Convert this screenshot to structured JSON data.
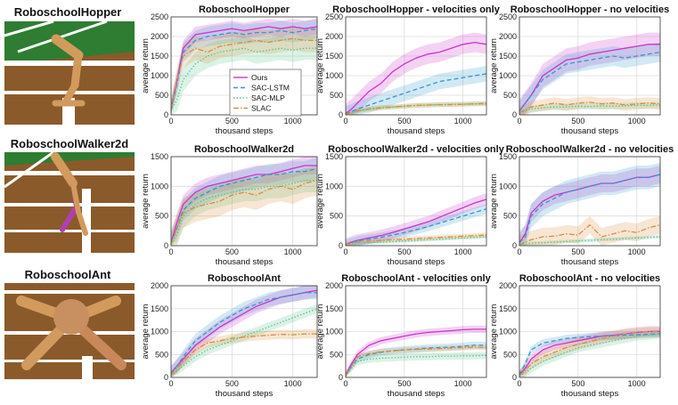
{
  "figure": {
    "environments": [
      {
        "key": "hopper",
        "title": "RoboschoolHopper"
      },
      {
        "key": "walker",
        "title": "RoboschoolWalker2d"
      },
      {
        "key": "ant",
        "title": "RoboschoolAnt"
      }
    ],
    "legend": [
      {
        "name": "Ours",
        "color": "#cc33cc",
        "style": "solid"
      },
      {
        "name": "SAC-LSTM",
        "color": "#3399cc",
        "style": "dashed"
      },
      {
        "name": "SAC-MLP",
        "color": "#66cc99",
        "style": "dotted"
      },
      {
        "name": "SLAC",
        "color": "#d9944a",
        "style": "dashdot"
      }
    ],
    "colors": {
      "Ours": "#cc33cc",
      "SAC-LSTM": "#3399cc",
      "SAC-MLP": "#5cc48f",
      "SLAC": "#d98c3c",
      "grid": "#dcdcdc",
      "turf": "#2e7d32",
      "track": "#8b5a2b"
    }
  },
  "chart_data": [
    {
      "type": "line",
      "title": "RoboschoolHopper",
      "xlabel": "thousand steps",
      "ylabel": "average return",
      "xlim": [
        0,
        1200
      ],
      "ylim": [
        0,
        2500
      ],
      "xticks": [
        0,
        500,
        1000
      ],
      "yticks": [
        0,
        500,
        1000,
        1500,
        2000,
        2500
      ],
      "x": [
        0,
        50,
        100,
        200,
        300,
        400,
        500,
        600,
        700,
        800,
        900,
        1000,
        1100,
        1200
      ],
      "series": [
        {
          "name": "Ours",
          "values": [
            150,
            900,
            1700,
            2050,
            2100,
            2150,
            2200,
            2150,
            2200,
            2250,
            2200,
            2250,
            2200,
            2250
          ],
          "band": 200
        },
        {
          "name": "SAC-LSTM",
          "values": [
            150,
            800,
            1600,
            1900,
            2000,
            2050,
            2100,
            2050,
            2100,
            2100,
            2150,
            2100,
            2150,
            2200
          ],
          "band": 250
        },
        {
          "name": "SAC-MLP",
          "values": [
            100,
            400,
            900,
            1300,
            1500,
            1600,
            1650,
            1700,
            1600,
            1650,
            1700,
            1650,
            1700,
            1700
          ],
          "band": 300
        },
        {
          "name": "SLAC",
          "values": [
            150,
            900,
            1500,
            1700,
            1600,
            1750,
            1800,
            1850,
            1900,
            1850,
            1900,
            1950,
            1900,
            1900
          ],
          "band": 300
        }
      ]
    },
    {
      "type": "line",
      "title": "RoboschoolHopper - velocities only",
      "xlabel": "thousand steps",
      "ylabel": "average return",
      "xlim": [
        0,
        1200
      ],
      "ylim": [
        0,
        2500
      ],
      "xticks": [
        0,
        500,
        1000
      ],
      "yticks": [
        0,
        500,
        1000,
        1500,
        2000,
        2500
      ],
      "x": [
        0,
        50,
        100,
        200,
        300,
        400,
        500,
        600,
        700,
        800,
        900,
        1000,
        1100,
        1200
      ],
      "series": [
        {
          "name": "Ours",
          "values": [
            30,
            150,
            300,
            600,
            800,
            1100,
            1300,
            1450,
            1550,
            1600,
            1700,
            1800,
            1850,
            1800
          ],
          "band": 250
        },
        {
          "name": "SAC-LSTM",
          "values": [
            20,
            80,
            150,
            250,
            350,
            450,
            550,
            650,
            750,
            850,
            900,
            950,
            1000,
            1050
          ],
          "band": 200
        },
        {
          "name": "SAC-MLP",
          "values": [
            20,
            60,
            100,
            150,
            180,
            200,
            220,
            240,
            250,
            260,
            270,
            270,
            280,
            280
          ],
          "band": 60
        },
        {
          "name": "SLAC",
          "values": [
            20,
            60,
            100,
            150,
            180,
            200,
            220,
            240,
            250,
            260,
            260,
            270,
            280,
            290
          ],
          "band": 60
        }
      ]
    },
    {
      "type": "line",
      "title": "RoboschoolHopper - no velocities",
      "xlabel": "thousand steps",
      "ylabel": "average return",
      "xlim": [
        0,
        1200
      ],
      "ylim": [
        0,
        2500
      ],
      "xticks": [
        0,
        500,
        1000
      ],
      "yticks": [
        0,
        500,
        1000,
        1500,
        2000,
        2500
      ],
      "x": [
        0,
        50,
        100,
        200,
        300,
        400,
        500,
        600,
        700,
        800,
        900,
        1000,
        1100,
        1200
      ],
      "series": [
        {
          "name": "Ours",
          "values": [
            100,
            300,
            500,
            1000,
            1200,
            1400,
            1450,
            1550,
            1600,
            1650,
            1700,
            1750,
            1800,
            1800
          ],
          "band": 300
        },
        {
          "name": "SAC-LSTM",
          "values": [
            100,
            300,
            500,
            900,
            1100,
            1300,
            1350,
            1400,
            1450,
            1500,
            1450,
            1500,
            1550,
            1600
          ],
          "band": 250
        },
        {
          "name": "SAC-MLP",
          "values": [
            60,
            100,
            150,
            180,
            200,
            200,
            220,
            210,
            230,
            220,
            230,
            240,
            240,
            250
          ],
          "band": 80
        },
        {
          "name": "SLAC",
          "values": [
            60,
            120,
            200,
            250,
            300,
            250,
            300,
            320,
            280,
            300,
            250,
            280,
            300,
            280
          ],
          "band": 150
        }
      ]
    },
    {
      "type": "line",
      "title": "RoboschoolWalker2d",
      "xlabel": "thousand steps",
      "ylabel": "average return",
      "xlim": [
        0,
        1200
      ],
      "ylim": [
        0,
        1500
      ],
      "xticks": [
        0,
        500,
        1000
      ],
      "yticks": [
        0,
        500,
        1000,
        1500
      ],
      "x": [
        0,
        50,
        100,
        200,
        300,
        400,
        500,
        600,
        700,
        800,
        900,
        1000,
        1100,
        1200
      ],
      "series": [
        {
          "name": "Ours",
          "values": [
            50,
            400,
            700,
            900,
            1000,
            1050,
            1100,
            1150,
            1200,
            1200,
            1250,
            1300,
            1350,
            1350
          ],
          "band": 150
        },
        {
          "name": "SAC-LSTM",
          "values": [
            50,
            300,
            600,
            800,
            900,
            1000,
            1050,
            1100,
            1150,
            1200,
            1200,
            1250,
            1250,
            1300
          ],
          "band": 180
        },
        {
          "name": "SAC-MLP",
          "values": [
            30,
            200,
            500,
            700,
            800,
            850,
            900,
            950,
            950,
            1000,
            1000,
            1050,
            1100,
            1100
          ],
          "band": 200
        },
        {
          "name": "SLAC",
          "values": [
            30,
            300,
            550,
            650,
            700,
            750,
            850,
            900,
            850,
            950,
            1000,
            950,
            1050,
            1100
          ],
          "band": 250
        }
      ]
    },
    {
      "type": "line",
      "title": "RoboschoolWalker2d - velocities only",
      "xlabel": "thousand steps",
      "ylabel": "average return",
      "xlim": [
        0,
        1200
      ],
      "ylim": [
        0,
        1500
      ],
      "xticks": [
        0,
        500,
        1000
      ],
      "yticks": [
        0,
        500,
        1000,
        1500
      ],
      "x": [
        0,
        50,
        100,
        200,
        300,
        400,
        500,
        600,
        700,
        800,
        900,
        1000,
        1100,
        1200
      ],
      "series": [
        {
          "name": "Ours",
          "values": [
            20,
            60,
            90,
            130,
            170,
            220,
            280,
            340,
            400,
            480,
            560,
            640,
            720,
            780
          ],
          "band": 100
        },
        {
          "name": "SAC-LSTM",
          "values": [
            20,
            50,
            80,
            110,
            140,
            180,
            220,
            270,
            320,
            380,
            440,
            500,
            560,
            620
          ],
          "band": 80
        },
        {
          "name": "SAC-MLP",
          "values": [
            20,
            30,
            40,
            50,
            60,
            70,
            80,
            90,
            100,
            110,
            120,
            130,
            140,
            150
          ],
          "band": 30
        },
        {
          "name": "SLAC",
          "values": [
            20,
            40,
            60,
            80,
            90,
            100,
            110,
            120,
            130,
            140,
            150,
            160,
            170,
            180
          ],
          "band": 40
        }
      ]
    },
    {
      "type": "line",
      "title": "RoboschoolWalker2d - no velocities",
      "xlabel": "thousand steps",
      "ylabel": "average return",
      "xlim": [
        0,
        1200
      ],
      "ylim": [
        0,
        1500
      ],
      "xticks": [
        0,
        500,
        1000
      ],
      "yticks": [
        0,
        500,
        1000,
        1500
      ],
      "x": [
        0,
        50,
        100,
        200,
        300,
        400,
        500,
        600,
        700,
        800,
        900,
        1000,
        1100,
        1200
      ],
      "series": [
        {
          "name": "Ours",
          "values": [
            50,
            200,
            550,
            750,
            850,
            900,
            950,
            1000,
            1050,
            1050,
            1100,
            1150,
            1150,
            1200
          ],
          "band": 150
        },
        {
          "name": "SAC-LSTM",
          "values": [
            50,
            150,
            500,
            700,
            800,
            900,
            950,
            1000,
            1050,
            1050,
            1100,
            1150,
            1150,
            1200
          ],
          "band": 200
        },
        {
          "name": "SAC-MLP",
          "values": [
            20,
            30,
            40,
            50,
            60,
            70,
            80,
            90,
            100,
            110,
            120,
            130,
            140,
            150
          ],
          "band": 30
        },
        {
          "name": "SLAC",
          "values": [
            20,
            60,
            100,
            150,
            160,
            200,
            180,
            350,
            150,
            200,
            250,
            220,
            300,
            350
          ],
          "band": 150
        }
      ]
    },
    {
      "type": "line",
      "title": "RoboschoolAnt",
      "xlabel": "thousand steps",
      "ylabel": "average return",
      "xlim": [
        0,
        1200
      ],
      "ylim": [
        0,
        2000
      ],
      "xticks": [
        0,
        500,
        1000
      ],
      "yticks": [
        0,
        500,
        1000,
        1500,
        2000
      ],
      "x": [
        0,
        50,
        100,
        200,
        300,
        400,
        500,
        600,
        700,
        800,
        900,
        1000,
        1100,
        1200
      ],
      "series": [
        {
          "name": "Ours",
          "values": [
            100,
            250,
            400,
            700,
            900,
            1100,
            1250,
            1400,
            1550,
            1650,
            1750,
            1800,
            1850,
            1900
          ],
          "band": 150
        },
        {
          "name": "SAC-LSTM",
          "values": [
            100,
            250,
            450,
            800,
            1000,
            1200,
            1350,
            1500,
            1600,
            1700,
            1750,
            1800,
            1850,
            1850
          ],
          "band": 150
        },
        {
          "name": "SAC-MLP",
          "values": [
            50,
            150,
            250,
            450,
            600,
            700,
            800,
            900,
            1000,
            1100,
            1200,
            1300,
            1400,
            1500
          ],
          "band": 100
        },
        {
          "name": "SLAC",
          "values": [
            50,
            200,
            350,
            600,
            750,
            800,
            850,
            880,
            900,
            920,
            940,
            930,
            950,
            950
          ],
          "band": 100
        }
      ]
    },
    {
      "type": "line",
      "title": "RoboschoolAnt - velocities only",
      "xlabel": "thousand steps",
      "ylabel": "average return",
      "xlim": [
        0,
        1200
      ],
      "ylim": [
        0,
        2000
      ],
      "xticks": [
        0,
        500,
        1000
      ],
      "yticks": [
        0,
        500,
        1000,
        1500,
        2000
      ],
      "x": [
        0,
        50,
        100,
        200,
        300,
        400,
        500,
        600,
        700,
        800,
        900,
        1000,
        1100,
        1200
      ],
      "series": [
        {
          "name": "Ours",
          "values": [
            50,
            300,
            500,
            700,
            800,
            850,
            900,
            950,
            980,
            1000,
            1020,
            1040,
            1050,
            1050
          ],
          "band": 80
        },
        {
          "name": "SAC-LSTM",
          "values": [
            50,
            250,
            400,
            500,
            550,
            580,
            600,
            620,
            640,
            650,
            660,
            680,
            700,
            700
          ],
          "band": 80
        },
        {
          "name": "SAC-MLP",
          "values": [
            30,
            200,
            350,
            400,
            420,
            430,
            440,
            450,
            450,
            460,
            460,
            470,
            470,
            480
          ],
          "band": 80
        },
        {
          "name": "SLAC",
          "values": [
            40,
            250,
            450,
            520,
            560,
            580,
            600,
            610,
            620,
            630,
            640,
            650,
            660,
            650
          ],
          "band": 60
        }
      ]
    },
    {
      "type": "line",
      "title": "RoboschoolAnt - no velocities",
      "xlabel": "thousand steps",
      "ylabel": "average return",
      "xlim": [
        0,
        1200
      ],
      "ylim": [
        0,
        2000
      ],
      "xticks": [
        0,
        500,
        1000
      ],
      "yticks": [
        0,
        500,
        1000,
        1500,
        2000
      ],
      "x": [
        0,
        50,
        100,
        200,
        300,
        400,
        500,
        600,
        700,
        800,
        900,
        1000,
        1100,
        1200
      ],
      "series": [
        {
          "name": "Ours",
          "values": [
            50,
            200,
            400,
            600,
            700,
            750,
            800,
            850,
            900,
            920,
            950,
            980,
            1000,
            1000
          ],
          "band": 100
        },
        {
          "name": "SAC-LSTM",
          "values": [
            50,
            300,
            600,
            750,
            800,
            850,
            870,
            890,
            900,
            910,
            920,
            930,
            940,
            950
          ],
          "band": 80
        },
        {
          "name": "SAC-MLP",
          "values": [
            30,
            100,
            200,
            350,
            450,
            550,
            650,
            700,
            750,
            800,
            850,
            900,
            920,
            950
          ],
          "band": 100
        },
        {
          "name": "SLAC",
          "values": [
            40,
            150,
            300,
            450,
            550,
            650,
            720,
            780,
            850,
            900,
            950,
            980,
            1000,
            1000
          ],
          "band": 120
        }
      ]
    }
  ]
}
